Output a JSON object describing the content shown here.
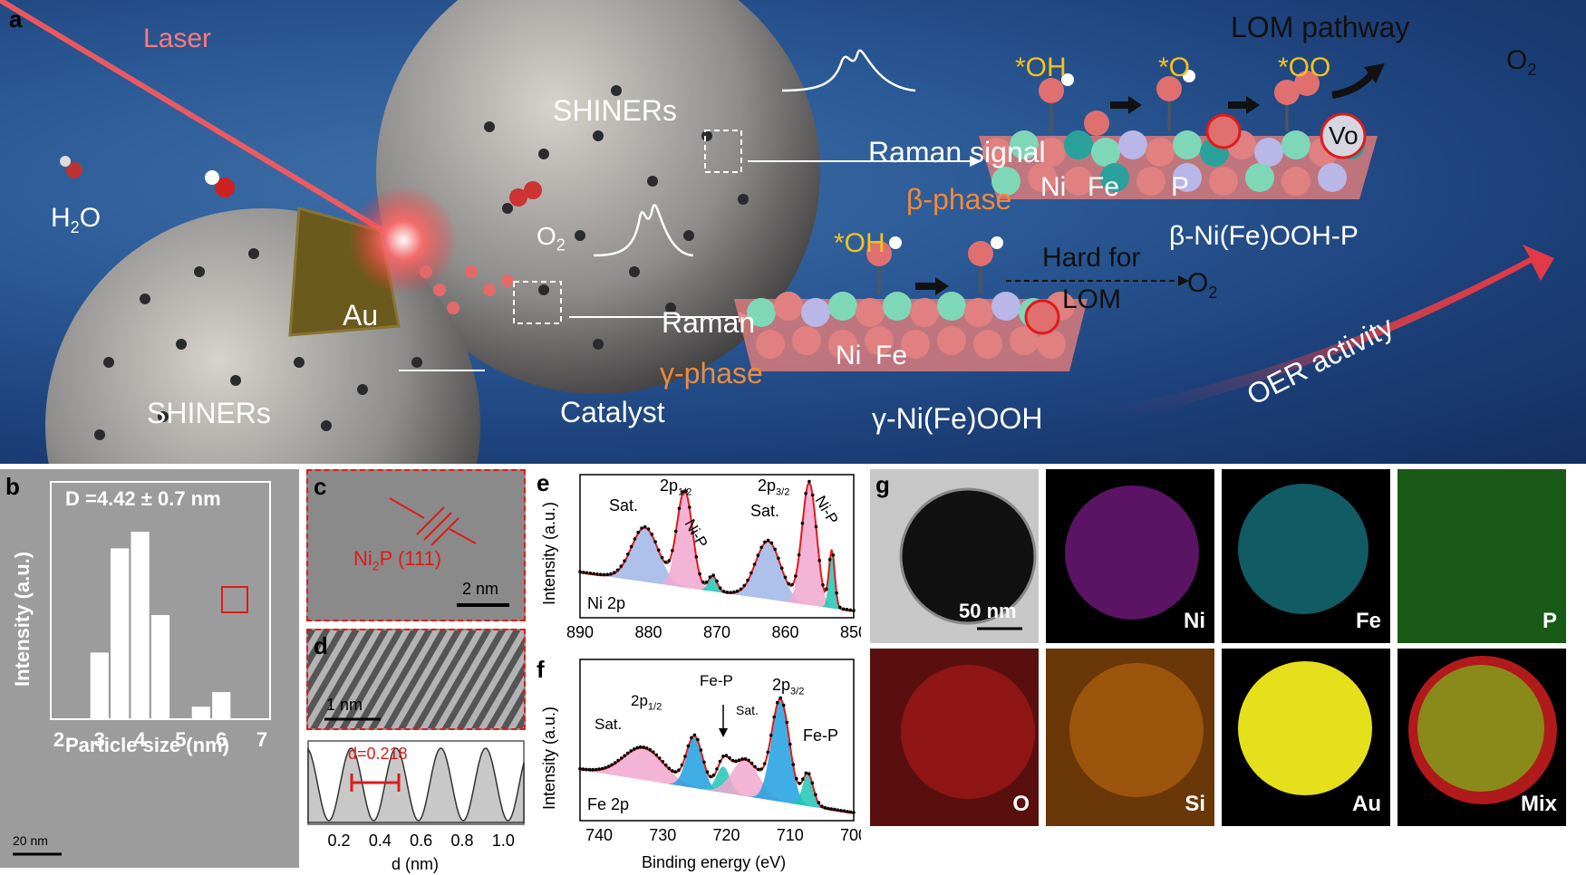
{
  "panel_a": {
    "label": "a",
    "laser": "Laser",
    "h2o": {
      "main": "H",
      "sub": "2",
      "tail": "O"
    },
    "o2_mid": {
      "main": "O",
      "sub": "2"
    },
    "shiners_top": "SHINERs",
    "shiners_bottom": "SHINERs",
    "au": "Au",
    "catalyst": "Catalyst",
    "raman_gamma": "Raman",
    "gamma_phase": "γ-phase",
    "raman_signal": "Raman signal",
    "beta_phase": "β-phase",
    "lom_pathway": "LOM pathway",
    "ads_oh_top": "*OH",
    "ads_o_top": "*O",
    "ads_oo_top": "*OO",
    "o2_top": {
      "main": "O",
      "sub": "2"
    },
    "vo": "Vo",
    "beta_ni": "Ni",
    "beta_fe": "Fe",
    "beta_p": "P",
    "beta_name": "β-Ni(Fe)OOH-P",
    "ads_oh_bottom": "*OH",
    "hard_for": "Hard for",
    "lom": "LOM",
    "o2_bottom": {
      "main": "O",
      "sub": "2"
    },
    "gamma_ni": "Ni",
    "gamma_fe": "Fe",
    "gamma_name": "γ-Ni(Fe)OOH",
    "oer_activity": "OER activity"
  },
  "panel_b": {
    "label": "b",
    "annotation": "D =4.42 ± 0.7 nm",
    "ylabel": "Intensity (a.u.)",
    "xlabel": "Particle size (nm)",
    "scale_bar": "20 nm"
  },
  "panel_c": {
    "label": "c",
    "lattice_main": "Ni",
    "lattice_sub": "2",
    "lattice_tail": "P (111)",
    "scale_bar": "2 nm"
  },
  "panel_d": {
    "label": "d",
    "scale_bar": "1 nm",
    "d_label": "d=0.218",
    "xlabel": "d (nm)"
  },
  "panel_e": {
    "label": "e",
    "ylabel": "Intensity (a.u.)",
    "element": "Ni 2p",
    "peaks": {
      "sat1": "Sat.",
      "p12": "2p",
      "p12_sub": "1/2",
      "nip1": "Ni-P",
      "sat2": "Sat.",
      "p32": "2p",
      "p32_sub": "3/2",
      "nip2": "Ni-P"
    }
  },
  "panel_f": {
    "label": "f",
    "ylabel": "Intensity (a.u.)",
    "element": "Fe 2p",
    "xlabel": "Binding energy (eV)",
    "peaks": {
      "sat1": "Sat.",
      "p12": "2p",
      "p12_sub": "1/2",
      "fep1": "Fe-P",
      "sat2": "Sat.",
      "p32": "2p",
      "p32_sub": "3/2",
      "fep2": "Fe-P"
    }
  },
  "panel_g": {
    "label": "g",
    "scale_bar": "50 nm",
    "maps": [
      "Ni",
      "Fe",
      "P",
      "O",
      "Si",
      "Au",
      "Mix"
    ]
  },
  "chart_data": [
    {
      "type": "bar",
      "panel": "b",
      "title": "D =4.42 ± 0.7 nm",
      "xlabel": "Particle size (nm)",
      "ylabel": "Intensity (a.u.)",
      "x": [
        3.0,
        3.5,
        4.0,
        4.5,
        5.0,
        5.5,
        6.0,
        6.5
      ],
      "values": [
        0.32,
        0.82,
        0.9,
        0.5,
        0.0,
        0.06,
        0.13,
        0.0
      ],
      "xticks": [
        "2",
        "3",
        "4",
        "5",
        "6",
        "7"
      ],
      "xlim": [
        1.8,
        7.2
      ],
      "ylim": [
        0,
        1
      ]
    },
    {
      "type": "line",
      "panel": "d",
      "xlabel": "d (nm)",
      "xticks": [
        "0.2",
        "0.4",
        "0.6",
        "0.8",
        "1.0"
      ],
      "xlim": [
        0.05,
        1.1
      ],
      "period": 0.218,
      "annotation": "d=0.218"
    },
    {
      "type": "area",
      "panel": "e",
      "ylabel": "Intensity (a.u.)",
      "xticks": [
        "890",
        "880",
        "870",
        "860",
        "850"
      ],
      "xlim": [
        890,
        850
      ],
      "series": [
        {
          "name": "Sat.",
          "center": 880.5,
          "height": 0.42,
          "width": 2.8,
          "color": "#9fb6e6"
        },
        {
          "name": "2p1/2",
          "center": 874.7,
          "height": 0.75,
          "width": 1.6,
          "color": "#f2a7cf"
        },
        {
          "name": "Ni-P",
          "center": 870.6,
          "height": 0.12,
          "width": 0.9,
          "color": "#20c5b4"
        },
        {
          "name": "Sat.",
          "center": 862.5,
          "height": 0.45,
          "width": 2.6,
          "color": "#9fb6e6"
        },
        {
          "name": "2p3/2",
          "center": 856.5,
          "height": 0.95,
          "width": 1.5,
          "color": "#f2a7cf"
        },
        {
          "name": "Ni-P",
          "center": 853.2,
          "height": 0.45,
          "width": 0.6,
          "color": "#20c5b4"
        }
      ]
    },
    {
      "type": "area",
      "panel": "f",
      "xlabel": "Binding energy (eV)",
      "ylabel": "Intensity (a.u.)",
      "xticks": [
        "740",
        "730",
        "720",
        "710",
        "700"
      ],
      "xlim": [
        743,
        700
      ],
      "series": [
        {
          "name": "Sat.",
          "center": 733.0,
          "height": 0.22,
          "width": 4.5,
          "color": "#f2a7cf"
        },
        {
          "name": "2p1/2",
          "center": 725.0,
          "height": 0.35,
          "width": 1.8,
          "color": "#1fa0e0"
        },
        {
          "name": "Fe-P",
          "center": 720.5,
          "height": 0.18,
          "width": 1.5,
          "color": "#20c5b4"
        },
        {
          "name": "Sat.",
          "center": 717.0,
          "height": 0.25,
          "width": 3.0,
          "color": "#f2a7cf"
        },
        {
          "name": "2p3/2",
          "center": 711.5,
          "height": 0.7,
          "width": 2.0,
          "color": "#1fa0e0"
        },
        {
          "name": "Fe-P",
          "center": 707.2,
          "height": 0.22,
          "width": 1.2,
          "color": "#20c5b4"
        }
      ]
    }
  ]
}
